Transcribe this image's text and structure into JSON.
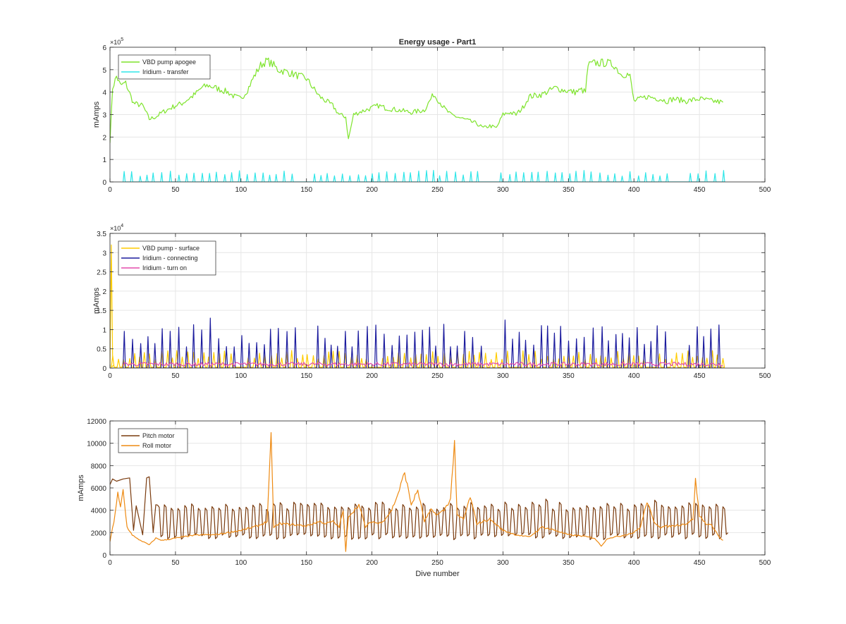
{
  "chart_data": [
    {
      "type": "line",
      "title": "Energy usage - Part1",
      "xlabel": "",
      "ylabel": "mAmps",
      "xlim": [
        0,
        500
      ],
      "ylim": [
        0,
        600000
      ],
      "x_ticks": [
        0,
        50,
        100,
        150,
        200,
        250,
        300,
        350,
        400,
        450,
        500
      ],
      "y_ticks": [
        0,
        1,
        2,
        3,
        4,
        5,
        6
      ],
      "y_exponent_base": "×10",
      "y_exponent": "5",
      "grid": true,
      "legend_position": "top-left",
      "series": [
        {
          "name": "VBD pump apogee",
          "color": "#7ee42c",
          "style": "noisy",
          "x": [
            0,
            2,
            5,
            8,
            12,
            18,
            25,
            30,
            35,
            40,
            50,
            55,
            65,
            70,
            75,
            80,
            90,
            95,
            100,
            105,
            110,
            115,
            120,
            125,
            128,
            135,
            145,
            150,
            155,
            160,
            165,
            170,
            175,
            180,
            182,
            186,
            190,
            195,
            200,
            205,
            210,
            220,
            230,
            240,
            247,
            250,
            255,
            260,
            270,
            280,
            285,
            290,
            295,
            300,
            305,
            310,
            315,
            320,
            330,
            340,
            345,
            355,
            360,
            363,
            365,
            370,
            380,
            385,
            390,
            395,
            397,
            400,
            405,
            410,
            420,
            425,
            430,
            440,
            450,
            460,
            468
          ],
          "y": [
            180000,
            420000,
            470000,
            430000,
            440000,
            350000,
            340000,
            280000,
            290000,
            310000,
            340000,
            350000,
            390000,
            420000,
            430000,
            420000,
            400000,
            380000,
            370000,
            410000,
            470000,
            520000,
            540000,
            520000,
            500000,
            490000,
            470000,
            460000,
            420000,
            380000,
            360000,
            340000,
            300000,
            290000,
            190000,
            300000,
            310000,
            320000,
            330000,
            340000,
            330000,
            320000,
            310000,
            320000,
            390000,
            370000,
            330000,
            300000,
            280000,
            260000,
            240000,
            250000,
            240000,
            300000,
            310000,
            300000,
            330000,
            380000,
            390000,
            420000,
            410000,
            400000,
            410000,
            400000,
            520000,
            530000,
            530000,
            520000,
            480000,
            480000,
            470000,
            360000,
            370000,
            380000,
            370000,
            360000,
            370000,
            360000,
            370000,
            360000,
            355000
          ]
        },
        {
          "name": "Iridium - transfer",
          "color": "#2ee6e8",
          "style": "spiky",
          "x_range": [
            10,
            468
          ],
          "base": 0,
          "peak": 45000,
          "spike_every": 5.8,
          "spike_width": 1.6
        }
      ]
    },
    {
      "type": "line",
      "title": "",
      "xlabel": "",
      "ylabel": "mAmps",
      "xlim": [
        0,
        500
      ],
      "ylim": [
        0,
        35000
      ],
      "x_ticks": [
        0,
        50,
        100,
        150,
        200,
        250,
        300,
        350,
        400,
        450,
        500
      ],
      "y_ticks": [
        0,
        0.5,
        1,
        1.5,
        2,
        2.5,
        3,
        3.5
      ],
      "y_exponent_base": "×10",
      "y_exponent": "4",
      "grid": true,
      "legend_position": "top-left",
      "series": [
        {
          "name": "VBD pump - surface",
          "color": "#ffcc00",
          "style": "spiky",
          "x_range": [
            1,
            468
          ],
          "base": 200,
          "peak": 4000,
          "spike_every": 4.2,
          "spike_width": 2.2,
          "x": [
            0,
            1,
            2,
            3
          ],
          "y": [
            0,
            32000,
            3000,
            800
          ]
        },
        {
          "name": "Iridium - connecting",
          "color": "#1c1c9e",
          "style": "spiky",
          "x_range": [
            10,
            468
          ],
          "base": 0,
          "peak": 10000,
          "spike_every": 5.8,
          "spike_width": 1.8,
          "peaks": [
            [
              18,
              7500
            ],
            [
              75,
              13000
            ],
            [
              131,
              13500
            ],
            [
              290,
              12000
            ],
            [
              300,
              12500
            ]
          ]
        },
        {
          "name": "Iridium - turn on",
          "color": "#e34cab",
          "style": "noise",
          "x_range": [
            10,
            468
          ],
          "base": 500,
          "peak": 1500
        }
      ]
    },
    {
      "type": "line",
      "title": "",
      "xlabel": "Dive number",
      "ylabel": "mAmps",
      "xlim": [
        0,
        500
      ],
      "ylim": [
        0,
        12000
      ],
      "x_ticks": [
        0,
        50,
        100,
        150,
        200,
        250,
        300,
        350,
        400,
        450,
        500
      ],
      "y_ticks": [
        0,
        2000,
        4000,
        6000,
        8000,
        10000,
        12000
      ],
      "y_exponent_base": "",
      "y_exponent": "",
      "grid": true,
      "legend_position": "top-left",
      "series": [
        {
          "name": "Pitch motor",
          "color": "#7a3b0e",
          "style": "oscillating",
          "x_range": [
            0,
            468
          ],
          "low": 1600,
          "high": 4400,
          "period": 5.2,
          "head": {
            "x": [
              0,
              2,
              5,
              10,
              15,
              18,
              20,
              25,
              28,
              30,
              33,
              35
            ],
            "y": [
              6300,
              6800,
              6600,
              6800,
              6900,
              2200,
              4400,
              1800,
              6900,
              7000,
              2000,
              4500
            ]
          },
          "peaks": [
            [
              122,
              4600
            ],
            [
              175,
              4300
            ],
            [
              331,
              5000
            ],
            [
              413,
              4900
            ]
          ]
        },
        {
          "name": "Roll motor",
          "color": "#ee8a12",
          "style": "noisy",
          "x": [
            0,
            3,
            6,
            8,
            10,
            13,
            17,
            20,
            25,
            30,
            35,
            40,
            50,
            60,
            70,
            80,
            90,
            100,
            110,
            115,
            120,
            123,
            125,
            130,
            140,
            150,
            160,
            165,
            170,
            175,
            178,
            180,
            182,
            185,
            190,
            195,
            200,
            205,
            210,
            215,
            220,
            225,
            230,
            235,
            240,
            245,
            250,
            255,
            260,
            263,
            265,
            270,
            275,
            280,
            290,
            300,
            310,
            320,
            330,
            340,
            350,
            360,
            370,
            375,
            380,
            390,
            400,
            405,
            410,
            415,
            420,
            430,
            440,
            445,
            447,
            450,
            455,
            460,
            465,
            468
          ],
          "y": [
            1200,
            3000,
            5500,
            4200,
            5800,
            2500,
            1800,
            1500,
            1200,
            900,
            1500,
            1300,
            1500,
            1700,
            1800,
            1800,
            2000,
            2200,
            2500,
            2700,
            3000,
            10600,
            2500,
            2800,
            2700,
            2600,
            3000,
            2800,
            3000,
            2500,
            4000,
            300,
            3500,
            3800,
            4500,
            2500,
            3000,
            2800,
            3200,
            4000,
            5500,
            7400,
            4500,
            5800,
            3000,
            4000,
            3600,
            4000,
            5000,
            10200,
            3500,
            3200,
            5200,
            2800,
            3200,
            2200,
            1800,
            1600,
            2500,
            2200,
            1800,
            1700,
            1500,
            800,
            1500,
            1700,
            2000,
            2500,
            4800,
            3000,
            2500,
            2600,
            2800,
            3200,
            6700,
            3500,
            2800,
            2600,
            1600,
            1300
          ]
        }
      ]
    }
  ]
}
